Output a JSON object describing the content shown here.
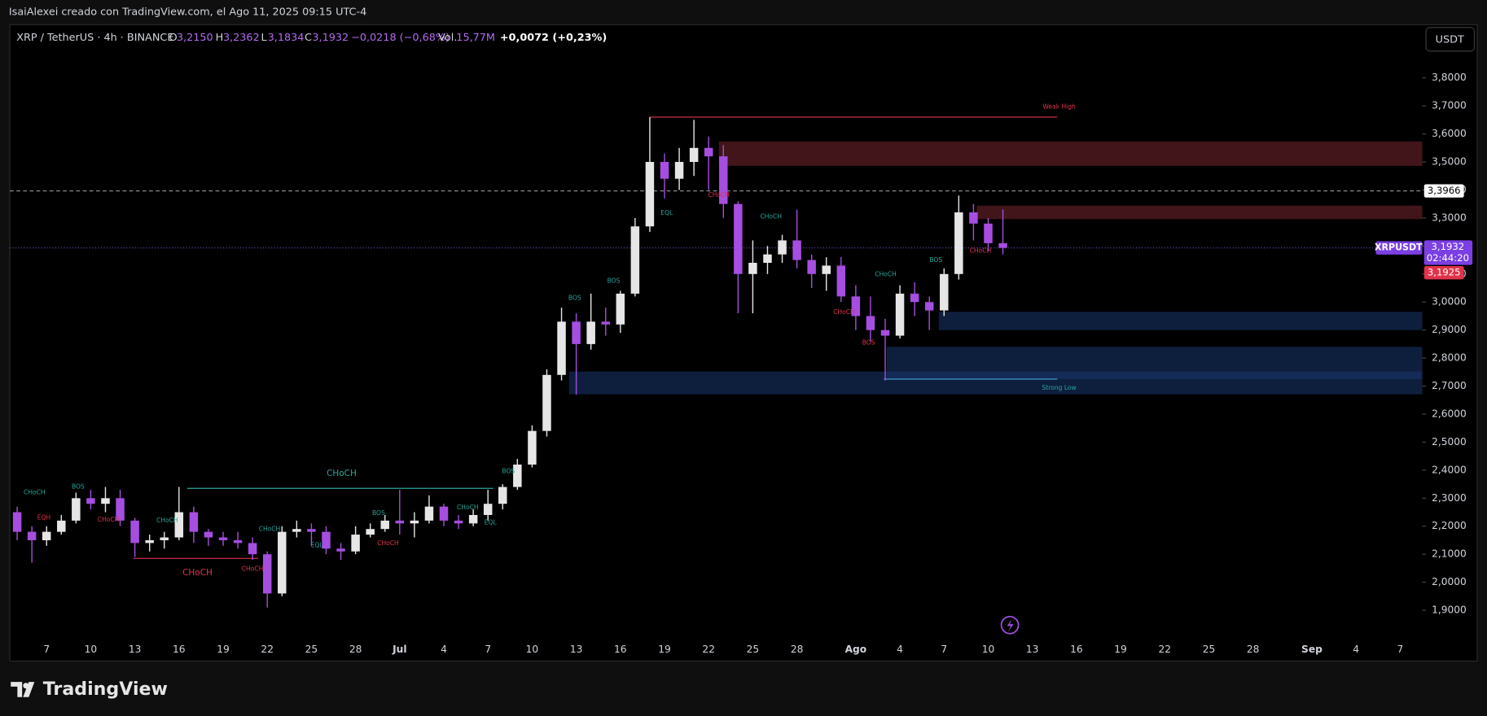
{
  "header": {
    "author_line": "IsaiAlexei creado con TradingView.com, el Ago 11, 2025 09:15 UTC-4",
    "symbol": "XRP / TetherUS · 4h · BINANCE",
    "open_label": "O",
    "open": "3,2150",
    "high_label": "H",
    "high": "3,2362",
    "low_label": "L",
    "low": "3,1834",
    "close_label": "C",
    "close": "3,1932",
    "change": "−0,0218 (−0,68%)",
    "volume_label": "Vol.",
    "volume": "15,77M",
    "indicator": "+0,0072 (+0,23%)"
  },
  "currency_button": "USDT",
  "footer": {
    "brand": "TradingView"
  },
  "chart_data": {
    "type": "candlestick",
    "categories": [
      null,
      null,
      "7",
      null,
      null,
      "10",
      null,
      null,
      "13",
      null,
      null,
      "16",
      null,
      null,
      "19",
      null,
      null,
      "22",
      null,
      null,
      "25",
      null,
      null,
      "28",
      null,
      null,
      "Jul",
      null,
      null,
      "4",
      null,
      null,
      "7",
      null,
      null,
      "10",
      null,
      null,
      "13",
      null,
      null,
      "16",
      null,
      null,
      "19",
      null,
      null,
      "22",
      null,
      null,
      "25",
      null,
      null,
      "28",
      null,
      null,
      null,
      "Ago",
      null,
      null,
      "4",
      null,
      null,
      "7",
      null,
      null,
      "10",
      null,
      null,
      "13",
      null,
      null,
      "16",
      null,
      null,
      "19",
      null,
      null,
      "22",
      null,
      null,
      "25",
      null,
      null,
      "28",
      null,
      null,
      null,
      "Sep",
      null,
      null,
      "4",
      null,
      null,
      "7",
      null
    ],
    "open": [
      2.25,
      2.18,
      2.15,
      2.18,
      2.22,
      2.3,
      2.28,
      2.3,
      2.22,
      2.14,
      2.15,
      2.16,
      2.25,
      2.18,
      2.16,
      2.15,
      2.14,
      2.1,
      1.96,
      2.18,
      2.19,
      2.18,
      2.12,
      2.11,
      2.17,
      2.19,
      2.22,
      2.21,
      2.22,
      2.27,
      2.22,
      2.21,
      2.24,
      2.28,
      2.34,
      2.42,
      2.54,
      2.74,
      2.93,
      2.85,
      2.93,
      2.92,
      3.03,
      3.27,
      3.5,
      3.44,
      3.5,
      3.55,
      3.52,
      3.35,
      3.1,
      3.14,
      3.17,
      3.22,
      3.15,
      3.1,
      3.13,
      3.02,
      2.95,
      2.9,
      2.88,
      3.03,
      3.0,
      2.97,
      3.1,
      3.32,
      3.28,
      3.21,
      null,
      null,
      null,
      null,
      null,
      null,
      null,
      null,
      null,
      null,
      null,
      null,
      null,
      null,
      null,
      null,
      null,
      null,
      null,
      null,
      null,
      null,
      null,
      null,
      null,
      null,
      null,
      null
    ],
    "high": [
      2.27,
      2.2,
      2.2,
      2.24,
      2.32,
      2.33,
      2.34,
      2.33,
      2.23,
      2.17,
      2.18,
      2.34,
      2.27,
      2.19,
      2.18,
      2.18,
      2.16,
      2.11,
      2.2,
      2.22,
      2.21,
      2.2,
      2.14,
      2.2,
      2.21,
      2.24,
      2.33,
      2.25,
      2.31,
      2.28,
      2.24,
      2.26,
      2.33,
      2.35,
      2.44,
      2.56,
      2.76,
      2.98,
      2.96,
      3.03,
      2.98,
      3.04,
      3.3,
      3.66,
      3.53,
      3.55,
      3.65,
      3.59,
      3.56,
      3.36,
      3.22,
      3.2,
      3.24,
      3.33,
      3.17,
      3.16,
      3.16,
      3.06,
      3.02,
      2.94,
      3.06,
      3.07,
      3.02,
      3.12,
      3.38,
      3.35,
      3.3,
      3.33,
      null,
      null,
      null,
      null,
      null,
      null,
      null,
      null,
      null,
      null,
      null,
      null,
      null,
      null,
      null,
      null,
      null,
      null,
      null,
      null,
      null,
      null,
      null,
      null,
      null,
      null,
      null,
      null
    ],
    "low": [
      2.15,
      2.07,
      2.13,
      2.17,
      2.21,
      2.26,
      2.25,
      2.2,
      2.09,
      2.11,
      2.12,
      2.15,
      2.14,
      2.13,
      2.13,
      2.12,
      2.08,
      1.91,
      1.95,
      2.16,
      2.13,
      2.1,
      2.08,
      2.1,
      2.16,
      2.18,
      2.17,
      2.16,
      2.21,
      2.2,
      2.19,
      2.2,
      2.22,
      2.26,
      2.33,
      2.41,
      2.52,
      2.72,
      2.67,
      2.83,
      2.88,
      2.89,
      3.02,
      3.25,
      3.37,
      3.4,
      3.45,
      3.4,
      3.3,
      2.96,
      2.96,
      3.1,
      3.14,
      3.12,
      3.05,
      3.04,
      3.0,
      2.9,
      2.86,
      2.72,
      2.87,
      2.95,
      2.9,
      2.95,
      3.08,
      3.22,
      3.18,
      3.17,
      null,
      null,
      null,
      null,
      null,
      null,
      null,
      null,
      null,
      null,
      null,
      null,
      null,
      null,
      null,
      null,
      null,
      null,
      null,
      null,
      null,
      null,
      null,
      null,
      null,
      null,
      null,
      null
    ],
    "close": [
      2.18,
      2.15,
      2.18,
      2.22,
      2.3,
      2.28,
      2.3,
      2.22,
      2.14,
      2.15,
      2.16,
      2.25,
      2.18,
      2.16,
      2.15,
      2.14,
      2.1,
      1.96,
      2.18,
      2.19,
      2.18,
      2.12,
      2.11,
      2.17,
      2.19,
      2.22,
      2.21,
      2.22,
      2.27,
      2.22,
      2.21,
      2.24,
      2.28,
      2.34,
      2.42,
      2.54,
      2.74,
      2.93,
      2.85,
      2.93,
      2.92,
      3.03,
      3.27,
      3.5,
      3.44,
      3.5,
      3.55,
      3.52,
      3.35,
      3.1,
      3.14,
      3.17,
      3.22,
      3.15,
      3.1,
      3.13,
      3.02,
      2.95,
      2.9,
      2.88,
      3.03,
      3.0,
      2.97,
      3.1,
      3.32,
      3.28,
      3.21,
      3.1932,
      null,
      null,
      null,
      null,
      null,
      null,
      null,
      null,
      null,
      null,
      null,
      null,
      null,
      null,
      null,
      null,
      null,
      null,
      null,
      null,
      null,
      null,
      null,
      null,
      null,
      null,
      null,
      null
    ],
    "up_color": "#e6e6e6",
    "down_color": "#a54ee0",
    "ylim": [
      1.81,
      3.99
    ],
    "yticks": [
      {
        "value": 1.9,
        "label": "1,9000"
      },
      {
        "value": 2.0,
        "label": "2,0000"
      },
      {
        "value": 2.1,
        "label": "2,1000"
      },
      {
        "value": 2.2,
        "label": "2,2000"
      },
      {
        "value": 2.3,
        "label": "2,3000"
      },
      {
        "value": 2.4,
        "label": "2,4000"
      },
      {
        "value": 2.5,
        "label": "2,5000"
      },
      {
        "value": 2.6,
        "label": "2,6000"
      },
      {
        "value": 2.7,
        "label": "2,7000"
      },
      {
        "value": 2.8,
        "label": "2,8000"
      },
      {
        "value": 2.9,
        "label": "2,9000"
      },
      {
        "value": 3.0,
        "label": "3,0000"
      },
      {
        "value": 3.1,
        "label": "3,1000"
      },
      {
        "value": 3.2,
        "label": "3,2000"
      },
      {
        "value": 3.3,
        "label": "3,3000"
      },
      {
        "value": 3.4,
        "label": "3,4000"
      },
      {
        "value": 3.5,
        "label": "3,5000"
      },
      {
        "value": 3.6,
        "label": "3,6000"
      },
      {
        "value": 3.7,
        "label": "3,7000"
      },
      {
        "value": 3.8,
        "label": "3,8000"
      }
    ],
    "grid": false,
    "zones": [
      {
        "from": 3.486,
        "to": 3.573,
        "color": "rgba(118,38,48,0.55)"
      },
      {
        "from": 3.296,
        "to": 3.344,
        "color": "rgba(118,38,48,0.55)"
      },
      {
        "from": 2.9,
        "to": 2.965,
        "color": "rgba(24,52,104,0.6)"
      },
      {
        "from": 2.725,
        "to": 2.84,
        "color": "rgba(24,52,104,0.6)"
      },
      {
        "from": 2.671,
        "to": 2.752,
        "color": "rgba(24,52,104,0.6)"
      }
    ],
    "levels": [
      {
        "value": 3.66,
        "color": "#e0334a"
      },
      {
        "value": 2.725,
        "color": "#4aa3df"
      },
      {
        "value": 2.335,
        "color": "#26a69a"
      },
      {
        "value": 2.085,
        "color": "#e0334a"
      }
    ],
    "price_lines": [
      {
        "value": 3.3966,
        "label": "3,3966",
        "style": "dashed"
      },
      {
        "value": 3.1932,
        "label": "3,1932",
        "symbol": "XRPUSDT",
        "countdown": "02:44:20",
        "style": "dotted"
      }
    ],
    "bid": {
      "value": 3.1925,
      "label": "3,1925"
    },
    "annotations": [
      {
        "text": "CHoCH",
        "color": "#26a69a"
      },
      {
        "text": "EQH",
        "color": "#e0334a"
      },
      {
        "text": "BOS",
        "color": "#26a69a"
      },
      {
        "text": "CHoCH",
        "color": "#e0334a"
      },
      {
        "text": "CHoCH",
        "color": "#26a69a"
      },
      {
        "text": "CHoCH",
        "color": "#26a69a"
      },
      {
        "text": "CHoCH",
        "color": "#e0334a"
      },
      {
        "text": "CHoCH",
        "color": "#e0334a"
      },
      {
        "text": "CHoCH",
        "color": "#26a69a"
      },
      {
        "text": "EQL",
        "color": "#26a69a"
      },
      {
        "text": "BOS",
        "color": "#26a69a"
      },
      {
        "text": "CHoCH",
        "color": "#e0334a"
      },
      {
        "text": "CHoCH",
        "color": "#26a69a"
      },
      {
        "text": "EQL",
        "color": "#26a69a"
      },
      {
        "text": "BOS",
        "color": "#26a69a"
      },
      {
        "text": "BOS",
        "color": "#26a69a"
      },
      {
        "text": "BOS",
        "color": "#26a69a"
      },
      {
        "text": "EQL",
        "color": "#26a69a"
      },
      {
        "text": "CHoCH",
        "color": "#e0334a"
      },
      {
        "text": "CHoCH",
        "color": "#26a69a"
      },
      {
        "text": "CHoCH",
        "color": "#e0334a"
      },
      {
        "text": "CHoCH",
        "color": "#26a69a"
      },
      {
        "text": "BOS",
        "color": "#e0334a"
      },
      {
        "text": "BOS",
        "color": "#26a69a"
      },
      {
        "text": "CHoCH",
        "color": "#e0334a"
      },
      {
        "text": "Weak High",
        "color": "#e0334a"
      },
      {
        "text": "Strong Low",
        "color": "#26a69a"
      }
    ]
  }
}
